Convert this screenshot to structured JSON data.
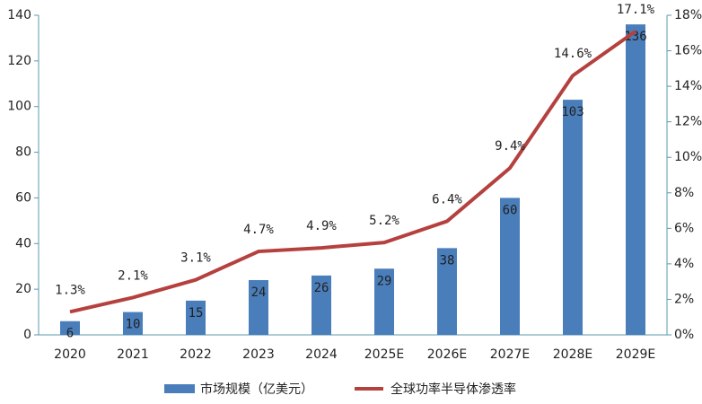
{
  "chart_data": {
    "type": "combo",
    "categories": [
      "2020",
      "2021",
      "2022",
      "2023",
      "2024",
      "2025E",
      "2026E",
      "2027E",
      "2028E",
      "2029E"
    ],
    "series": [
      {
        "name": "市场规模（亿美元）",
        "type": "bar",
        "color": "#4a7ebb",
        "values": [
          6,
          10,
          15,
          24,
          26,
          29,
          38,
          60,
          103,
          136
        ]
      },
      {
        "name": "全球功率半导体渗透率",
        "type": "line",
        "axis": "y2",
        "color": "#b5413f",
        "values": [
          1.3,
          2.1,
          3.1,
          4.7,
          4.9,
          5.2,
          6.4,
          9.4,
          14.6,
          17.1
        ],
        "value_labels": [
          "1.3%",
          "2.1%",
          "3.1%",
          "4.7%",
          "4.9%",
          "5.2%",
          "6.4%",
          "9.4%",
          "14.6%",
          "17.1%"
        ]
      }
    ],
    "ylim": [
      0,
      140
    ],
    "yticks": [
      0,
      20,
      40,
      60,
      80,
      100,
      120,
      140
    ],
    "y2lim": [
      0,
      18
    ],
    "y2ticks": [
      {
        "value": 0,
        "label": "0%"
      },
      {
        "value": 2,
        "label": "2%"
      },
      {
        "value": 4,
        "label": "4%"
      },
      {
        "value": 6,
        "label": "6%"
      },
      {
        "value": 8,
        "label": "8%"
      },
      {
        "value": 10,
        "label": "10%"
      },
      {
        "value": 12,
        "label": "12%"
      },
      {
        "value": 14,
        "label": "14%"
      },
      {
        "value": 16,
        "label": "16%"
      },
      {
        "value": 18,
        "label": "18%"
      }
    ],
    "legend": "bottom"
  }
}
